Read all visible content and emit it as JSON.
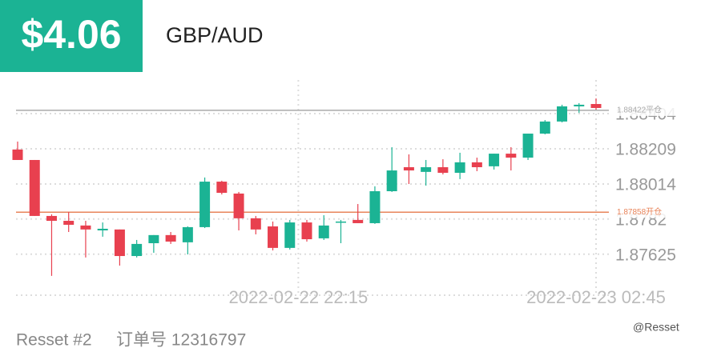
{
  "header": {
    "price": "$4.06",
    "pair": "GBP/AUD"
  },
  "footer": {
    "account": "Resset #2",
    "order": "订单号 12316797",
    "watermark": "@Resset"
  },
  "chart_data": {
    "type": "candlestick",
    "categories": [
      null,
      null,
      null,
      null,
      null,
      null,
      null,
      null,
      null,
      null,
      null,
      null,
      null,
      null,
      null,
      null,
      null,
      null,
      null,
      null,
      null,
      null,
      null,
      null,
      null,
      null,
      null,
      null,
      null,
      null,
      null,
      null,
      null,
      null,
      null
    ],
    "ohlc": [
      {
        "open": 1.88205,
        "high": 1.88249,
        "low": 1.88147,
        "close": 1.88147
      },
      {
        "open": 1.88147,
        "high": 1.88147,
        "low": 1.87837,
        "close": 1.87837
      },
      {
        "open": 1.87837,
        "high": 1.87846,
        "low": 1.87505,
        "close": 1.8781
      },
      {
        "open": 1.8781,
        "high": 1.87859,
        "low": 1.87748,
        "close": 1.87788
      },
      {
        "open": 1.87784,
        "high": 1.8781,
        "low": 1.87607,
        "close": 1.87762
      },
      {
        "open": 1.87757,
        "high": 1.87801,
        "low": 1.87722,
        "close": 1.87766
      },
      {
        "open": 1.87762,
        "high": 1.87762,
        "low": 1.87562,
        "close": 1.87615
      },
      {
        "open": 1.87615,
        "high": 1.87704,
        "low": 1.87607,
        "close": 1.87682
      },
      {
        "open": 1.87686,
        "high": 1.87731,
        "low": 1.87633,
        "close": 1.87731
      },
      {
        "open": 1.87731,
        "high": 1.87748,
        "low": 1.87682,
        "close": 1.87695
      },
      {
        "open": 1.87691,
        "high": 1.87779,
        "low": 1.87624,
        "close": 1.87775
      },
      {
        "open": 1.87775,
        "high": 1.8805,
        "low": 1.8777,
        "close": 1.88027
      },
      {
        "open": 1.88027,
        "high": 1.88032,
        "low": 1.87956,
        "close": 1.87965
      },
      {
        "open": 1.87961,
        "high": 1.8797,
        "low": 1.87757,
        "close": 1.87824
      },
      {
        "open": 1.87824,
        "high": 1.87837,
        "low": 1.87735,
        "close": 1.87762
      },
      {
        "open": 1.87779,
        "high": 1.87806,
        "low": 1.87646,
        "close": 1.8766
      },
      {
        "open": 1.8766,
        "high": 1.87815,
        "low": 1.87651,
        "close": 1.87801
      },
      {
        "open": 1.87801,
        "high": 1.87815,
        "low": 1.87695,
        "close": 1.87708
      },
      {
        "open": 1.87713,
        "high": 1.87841,
        "low": 1.87704,
        "close": 1.87784
      },
      {
        "open": 1.87801,
        "high": 1.87815,
        "low": 1.87686,
        "close": 1.87806
      },
      {
        "open": 1.87815,
        "high": 1.87903,
        "low": 1.87797,
        "close": 1.87797
      },
      {
        "open": 1.87797,
        "high": 1.88001,
        "low": 1.87793,
        "close": 1.87974
      },
      {
        "open": 1.87974,
        "high": 1.88218,
        "low": 1.8797,
        "close": 1.88089
      },
      {
        "open": 1.88107,
        "high": 1.88178,
        "low": 1.88014,
        "close": 1.88089
      },
      {
        "open": 1.88081,
        "high": 1.88147,
        "low": 1.88005,
        "close": 1.88107
      },
      {
        "open": 1.88107,
        "high": 1.88151,
        "low": 1.88067,
        "close": 1.88076
      },
      {
        "open": 1.88076,
        "high": 1.88187,
        "low": 1.88041,
        "close": 1.88134
      },
      {
        "open": 1.88134,
        "high": 1.8816,
        "low": 1.88085,
        "close": 1.88107
      },
      {
        "open": 1.88112,
        "high": 1.88182,
        "low": 1.88094,
        "close": 1.88182
      },
      {
        "open": 1.88182,
        "high": 1.88218,
        "low": 1.88089,
        "close": 1.8816
      },
      {
        "open": 1.8816,
        "high": 1.88293,
        "low": 1.88147,
        "close": 1.88293
      },
      {
        "open": 1.88293,
        "high": 1.88368,
        "low": 1.88289,
        "close": 1.8836
      },
      {
        "open": 1.8836,
        "high": 1.88453,
        "low": 1.88355,
        "close": 1.88444
      },
      {
        "open": 1.88444,
        "high": 1.88462,
        "low": 1.88408,
        "close": 1.88453
      },
      {
        "open": 1.88457,
        "high": 1.88488,
        "low": 1.88426,
        "close": 1.88435
      }
    ],
    "up_color": "#1bb394",
    "down_color": "#e8404f",
    "ylim": [
      1.87398,
      1.8859
    ],
    "yticks": [
      1.88404,
      1.88209,
      1.88014,
      1.8782,
      1.87625
    ],
    "xticks": [
      {
        "value": 16.5,
        "label": "2022-02-22 22:15"
      },
      {
        "value": 34,
        "label": "2022-02-23 02:45"
      }
    ],
    "grid": true,
    "reference_lines": [
      {
        "value": 1.88422,
        "label": "1.88422平仓",
        "color": "#aaaaaa"
      },
      {
        "value": 1.87858,
        "label": "1.87858开仓",
        "color": "#e8845a"
      }
    ]
  }
}
